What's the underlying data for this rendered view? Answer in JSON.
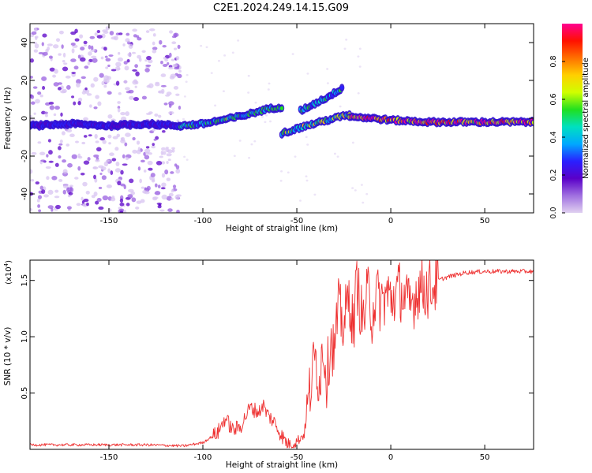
{
  "title": "C2E1.2024.249.14.15.G09",
  "colors": {
    "background": "#ffffff",
    "axis": "#000000",
    "snr_line": "#ee3030",
    "spectrogram_speckle": "#8a4cd8",
    "colorbar_stops": [
      "#e0d0f0",
      "#a070e0",
      "#5a00c8",
      "#2a20ff",
      "#00a8ff",
      "#00e0c0",
      "#20e020",
      "#d0ff00",
      "#ffd000",
      "#ff7000",
      "#ff1000",
      "#ff0090"
    ]
  },
  "chart_data": [
    {
      "type": "heatmap",
      "xlabel": "Height of straight line (km)",
      "ylabel": "Frequency (Hz)",
      "xlim": [
        -192,
        76
      ],
      "ylim": [
        -50,
        50
      ],
      "xticks": [
        -150,
        -100,
        -50,
        0,
        50
      ],
      "xtick_labels": [
        "-150",
        "-100",
        "-50",
        "0",
        "50"
      ],
      "yticks": [
        -40,
        -20,
        0,
        20,
        40
      ],
      "ytick_labels": [
        "-40",
        "-20",
        "0",
        "20",
        "40"
      ],
      "grid": false,
      "colorbar": {
        "label": "Normalized spectral amplitude",
        "range": [
          0,
          1
        ],
        "ticks": [
          0.0,
          0.2,
          0.4,
          0.6,
          0.8
        ],
        "tick_labels": [
          "0.0",
          "0.2",
          "0.4",
          "0.6",
          "0.8"
        ]
      },
      "traces": [
        {
          "x": [
            -192,
            -170,
            -150,
            -130,
            -112
          ],
          "freq": [
            -4,
            -3,
            -4,
            -3,
            -4
          ],
          "amplitude": 0.25
        },
        {
          "x": [
            -112,
            -100,
            -80,
            -65,
            -58
          ],
          "freq": [
            -4,
            -3,
            1,
            5,
            6
          ],
          "amplitude": 0.5
        },
        {
          "x": [
            -58,
            -45,
            -30,
            -22
          ],
          "freq": [
            -8,
            -4,
            0,
            2
          ],
          "amplitude": 0.6
        },
        {
          "x": [
            -48,
            -40,
            -32,
            -26
          ],
          "freq": [
            4,
            8,
            12,
            16
          ],
          "amplitude": 0.45
        },
        {
          "x": [
            -22,
            -10,
            0,
            20,
            50,
            76
          ],
          "freq": [
            1,
            0,
            -1,
            -2,
            -2,
            -2
          ],
          "amplitude": 0.95
        }
      ],
      "scatter_region": {
        "x": [
          -192,
          -112
        ],
        "freq": [
          -50,
          48
        ]
      }
    },
    {
      "type": "line",
      "xlabel": "Height of straight line (km)",
      "ylabel": "SNR (10 * v/v)",
      "y_multiplier": "(x10",
      "y_multiplier_exp": "4",
      "y_multiplier_close": ")",
      "xlim": [
        -192,
        76
      ],
      "ylim": [
        0,
        1.68
      ],
      "xticks": [
        -150,
        -100,
        -50,
        0,
        50
      ],
      "xtick_labels": [
        "-150",
        "-100",
        "-50",
        "0",
        "50"
      ],
      "yticks": [
        0.5,
        1.0,
        1.5
      ],
      "ytick_labels": [
        "0.5",
        "1.0",
        "1.5"
      ],
      "grid": false,
      "series": [
        {
          "x": [
            -192,
            -170,
            -150,
            -130,
            -110,
            -100,
            -92,
            -88,
            -86,
            -84,
            -80,
            -75,
            -70,
            -68,
            -66,
            -62,
            -58,
            -55,
            -52,
            -50,
            -46,
            -44,
            -42,
            -40,
            -38,
            -36,
            -34,
            -32,
            -30,
            -28,
            -25,
            -22,
            -20,
            -18,
            -15,
            -12,
            -10,
            -8,
            -5,
            -2,
            0,
            5,
            10,
            15,
            20,
            25,
            30,
            40,
            50,
            60,
            76
          ],
          "y": [
            0.04,
            0.04,
            0.04,
            0.04,
            0.03,
            0.06,
            0.15,
            0.28,
            0.22,
            0.17,
            0.2,
            0.37,
            0.33,
            0.4,
            0.32,
            0.24,
            0.12,
            0.05,
            0.05,
            0.07,
            0.14,
            0.4,
            0.65,
            0.82,
            0.6,
            0.95,
            0.62,
            1.0,
            0.85,
            1.25,
            1.1,
            1.38,
            1.05,
            1.5,
            1.12,
            1.4,
            1.2,
            1.37,
            1.3,
            1.38,
            1.33,
            1.42,
            1.25,
            1.45,
            1.42,
            1.5,
            1.53,
            1.57,
            1.58,
            1.58,
            1.58
          ]
        }
      ]
    }
  ]
}
